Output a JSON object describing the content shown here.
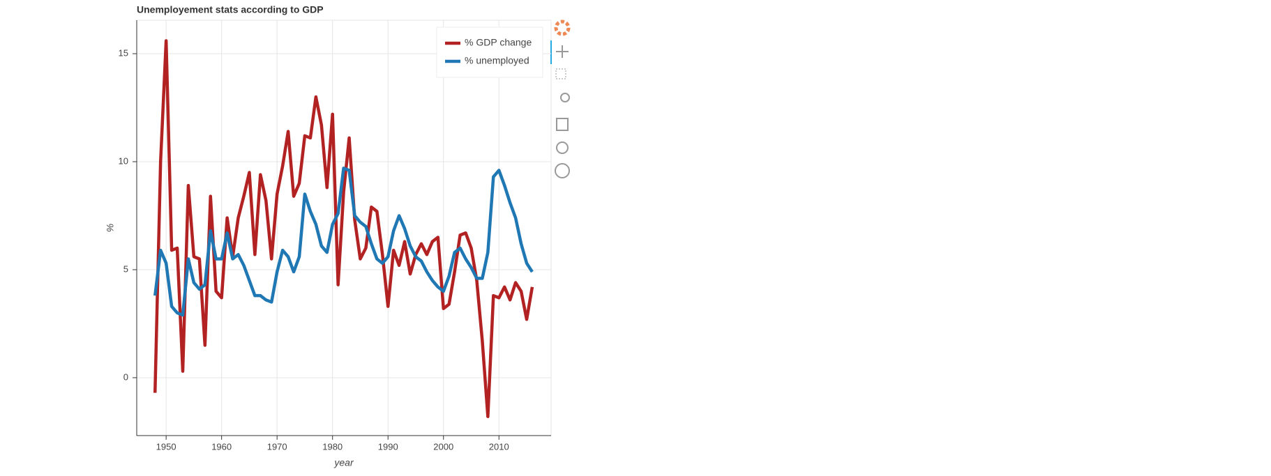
{
  "chart_data": {
    "type": "line",
    "title": "Unemployement stats according to GDP",
    "x_label": "year",
    "y_label": "%",
    "x": [
      1948,
      1949,
      1950,
      1951,
      1952,
      1953,
      1954,
      1955,
      1956,
      1957,
      1958,
      1959,
      1960,
      1961,
      1962,
      1963,
      1964,
      1965,
      1966,
      1967,
      1968,
      1969,
      1970,
      1971,
      1972,
      1973,
      1974,
      1975,
      1976,
      1977,
      1978,
      1979,
      1980,
      1981,
      1982,
      1983,
      1984,
      1985,
      1986,
      1987,
      1988,
      1989,
      1990,
      1991,
      1992,
      1993,
      1994,
      1995,
      1996,
      1997,
      1998,
      1999,
      2000,
      2001,
      2002,
      2003,
      2004,
      2005,
      2006,
      2007,
      2008,
      2009,
      2010,
      2011,
      2012,
      2013,
      2014,
      2015,
      2016
    ],
    "series": [
      {
        "name": "% GDP change",
        "color": "#b22222",
        "values": [
          -0.7,
          10.0,
          15.6,
          5.9,
          6.0,
          0.3,
          8.9,
          5.6,
          5.5,
          1.5,
          8.4,
          4.0,
          3.7,
          7.4,
          5.6,
          7.4,
          8.4,
          9.5,
          5.7,
          9.4,
          8.2,
          5.5,
          8.5,
          9.8,
          11.4,
          8.4,
          9.0,
          11.2,
          11.1,
          13.0,
          11.7,
          8.8,
          12.2,
          4.3,
          8.6,
          11.1,
          7.3,
          5.5,
          6.0,
          7.9,
          7.7,
          5.7,
          3.3,
          5.9,
          5.2,
          6.3,
          4.8,
          5.7,
          6.2,
          5.7,
          6.3,
          6.5,
          3.2,
          3.4,
          4.9,
          6.6,
          6.7,
          6.0,
          4.5,
          1.7,
          -1.8,
          3.8,
          3.7,
          4.2,
          3.6,
          4.4,
          4.0,
          2.7,
          4.2
        ]
      },
      {
        "name": "% unemployed",
        "color": "#1f77b4",
        "values": [
          3.8,
          5.9,
          5.3,
          3.3,
          3.0,
          2.9,
          5.5,
          4.4,
          4.1,
          4.3,
          6.8,
          5.5,
          5.5,
          6.7,
          5.5,
          5.7,
          5.2,
          4.5,
          3.8,
          3.8,
          3.6,
          3.5,
          4.9,
          5.9,
          5.6,
          4.9,
          5.6,
          8.5,
          7.7,
          7.1,
          6.1,
          5.8,
          7.1,
          7.6,
          9.7,
          9.6,
          7.5,
          7.2,
          7.0,
          6.2,
          5.5,
          5.3,
          5.6,
          6.8,
          7.5,
          6.9,
          6.1,
          5.6,
          5.4,
          4.9,
          4.5,
          4.2,
          4.0,
          4.7,
          5.8,
          6.0,
          5.5,
          5.1,
          4.6,
          4.6,
          5.8,
          9.3,
          9.6,
          8.9,
          8.1,
          7.4,
          6.2,
          5.3,
          4.9
        ]
      }
    ],
    "xlim": [
      1944.7,
      2019.4
    ],
    "ylim": [
      -2.68,
      16.55
    ],
    "xticks": [
      1950,
      1960,
      1970,
      1980,
      1990,
      2000,
      2010
    ],
    "yticks": [
      0,
      5,
      10,
      15
    ],
    "grid": true,
    "legend_position": "top-right"
  }
}
